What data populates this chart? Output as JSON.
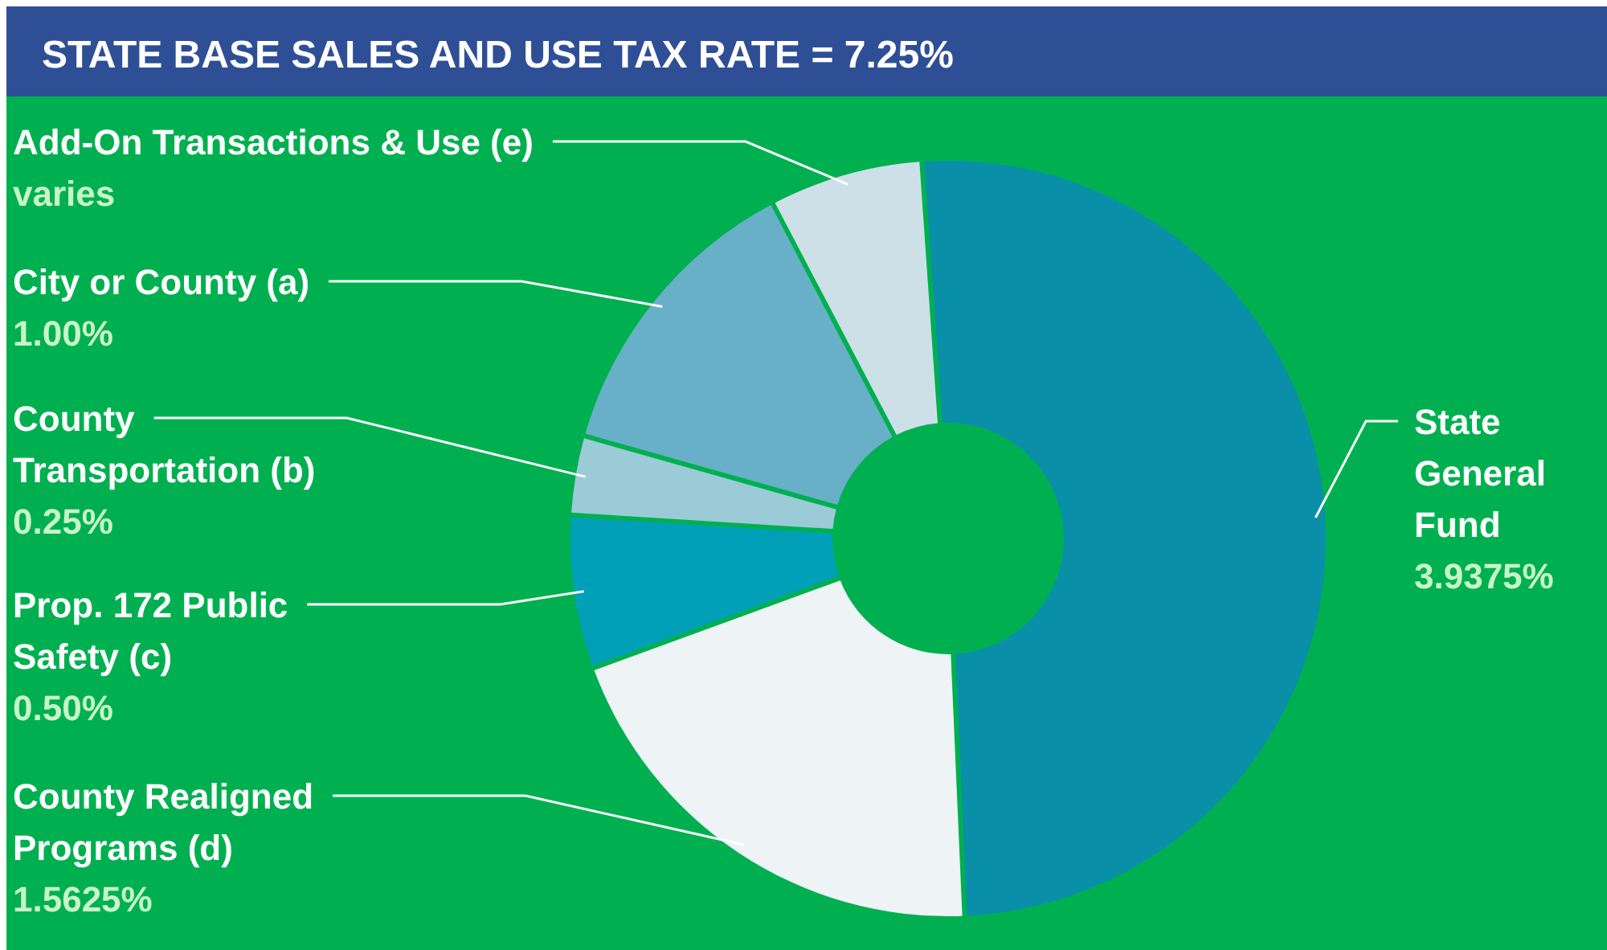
{
  "chart_data": {
    "type": "donut",
    "title": "STATE BASE SALES AND USE TAX RATE = 7.25%",
    "categories": [
      "State General Fund",
      "County Realigned Programs (d)",
      "Prop. 172 Public Safety (c)",
      "County Transportation (b)",
      "City or County (a)",
      "Add-On Transactions & Use (e)"
    ],
    "values": [
      3.9375,
      1.5625,
      0.5,
      0.25,
      1.0,
      0.5
    ],
    "value_labels": [
      "3.9375%",
      "1.5625%",
      "0.50%",
      "0.25%",
      "1.00%",
      "varies"
    ],
    "colors": [
      "#0a8fa8",
      "#eef3f6",
      "#00a0b8",
      "#9ccbd8",
      "#68b0c8",
      "#cde0e8"
    ]
  }
}
